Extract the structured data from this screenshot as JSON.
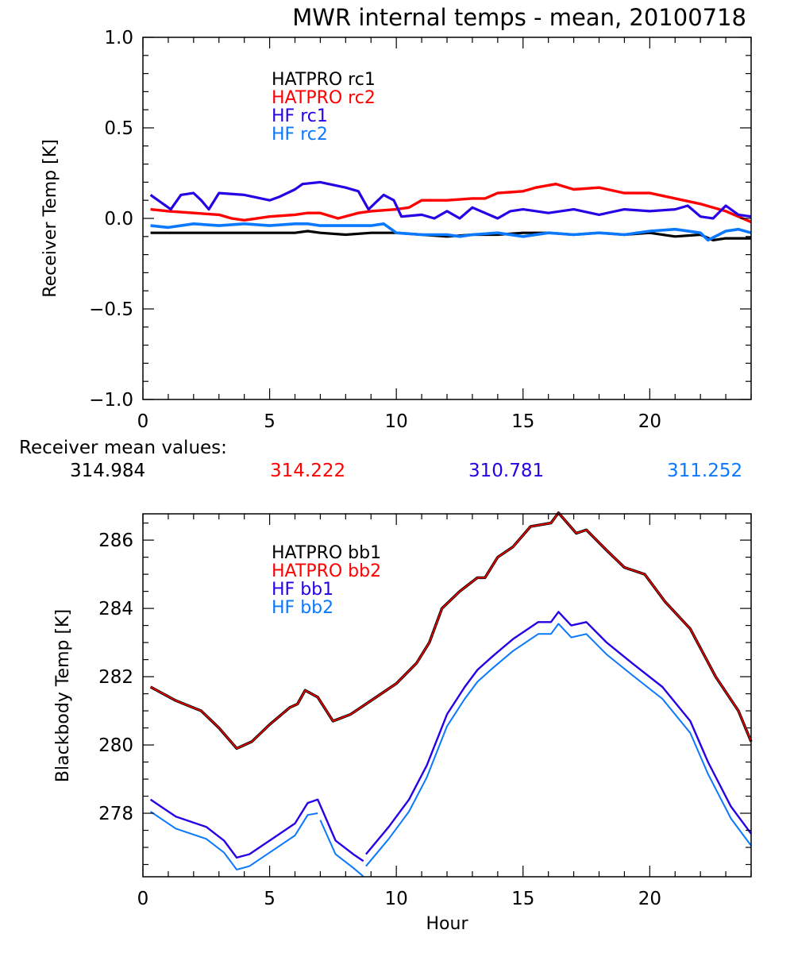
{
  "title": "MWR internal temps - mean, 20100718",
  "receiver_mean": {
    "label": "Receiver mean values:",
    "values": [
      {
        "text": "314.984",
        "color": "#000000"
      },
      {
        "text": "314.222",
        "color": "#ff0000"
      },
      {
        "text": "310.781",
        "color": "#2800e6"
      },
      {
        "text": "311.252",
        "color": "#0a78ff"
      }
    ]
  },
  "chart_data": [
    {
      "type": "line",
      "title": "MWR internal temps - mean, 20100718",
      "xlabel": "",
      "ylabel": "Receiver Temp [K]",
      "xlim": [
        0,
        24
      ],
      "ylim": [
        -1.0,
        1.0
      ],
      "xticks": [
        0,
        5,
        10,
        15,
        20
      ],
      "xtick_labels": [
        "0",
        "5",
        "10",
        "15",
        "20"
      ],
      "x_minor_step": 1,
      "yticks": [
        -1.0,
        -0.5,
        0.0,
        0.5,
        1.0
      ],
      "ytick_labels": [
        "−1.0",
        "−0.5",
        "0.0",
        "0.5",
        "1.0"
      ],
      "y_minor_step": 0.1,
      "grid": false,
      "legend_position": "top-center",
      "series": [
        {
          "name": "HATPRO rc1",
          "color": "#000000",
          "x": [
            0.3,
            1,
            2,
            3,
            4,
            5,
            6,
            6.5,
            7,
            8,
            9,
            9.5,
            10,
            11,
            12,
            13,
            14,
            15,
            16,
            17,
            18,
            19,
            20,
            21,
            22,
            22.5,
            23,
            24
          ],
          "y": [
            -0.08,
            -0.08,
            -0.08,
            -0.08,
            -0.08,
            -0.08,
            -0.08,
            -0.07,
            -0.08,
            -0.09,
            -0.08,
            -0.08,
            -0.08,
            -0.09,
            -0.1,
            -0.09,
            -0.09,
            -0.08,
            -0.08,
            -0.09,
            -0.08,
            -0.09,
            -0.08,
            -0.1,
            -0.09,
            -0.12,
            -0.11,
            -0.11
          ]
        },
        {
          "name": "HATPRO rc2",
          "color": "#ff0000",
          "x": [
            0.3,
            1,
            2,
            3,
            3.5,
            4,
            5,
            6,
            6.5,
            7,
            7.7,
            8.5,
            9,
            10,
            10.5,
            11,
            12,
            13,
            13.5,
            14,
            15,
            15.5,
            16.3,
            17,
            18,
            19,
            20,
            21,
            22,
            23,
            24
          ],
          "y": [
            0.05,
            0.04,
            0.03,
            0.02,
            0.0,
            -0.01,
            0.01,
            0.02,
            0.03,
            0.03,
            0.0,
            0.03,
            0.04,
            0.05,
            0.06,
            0.1,
            0.1,
            0.11,
            0.11,
            0.14,
            0.15,
            0.17,
            0.19,
            0.16,
            0.17,
            0.14,
            0.14,
            0.11,
            0.08,
            0.04,
            -0.02
          ]
        },
        {
          "name": "HF rc1",
          "color": "#2800e6",
          "x": [
            0.3,
            0.7,
            1.1,
            1.5,
            2.0,
            2.3,
            2.6,
            3.0,
            4.0,
            5.0,
            5.4,
            6.0,
            6.3,
            7.0,
            8.0,
            8.5,
            8.9,
            9.5,
            9.9,
            10.2,
            11.0,
            11.5,
            12.0,
            12.5,
            13.0,
            14.0,
            14.5,
            15.0,
            16.0,
            17.0,
            18.0,
            19.0,
            20.0,
            21.0,
            21.5,
            22.0,
            22.5,
            23.0,
            23.5,
            24.0
          ],
          "y": [
            0.13,
            0.09,
            0.05,
            0.13,
            0.14,
            0.1,
            0.05,
            0.14,
            0.13,
            0.1,
            0.12,
            0.16,
            0.19,
            0.2,
            0.17,
            0.15,
            0.05,
            0.13,
            0.1,
            0.01,
            0.02,
            0.0,
            0.04,
            0.0,
            0.06,
            0.0,
            0.04,
            0.05,
            0.03,
            0.05,
            0.02,
            0.05,
            0.04,
            0.05,
            0.07,
            0.01,
            0.0,
            0.07,
            0.02,
            0.01
          ]
        },
        {
          "name": "HF rc2",
          "color": "#0a78ff",
          "x": [
            0.3,
            1,
            2,
            3,
            4,
            5,
            6,
            6.5,
            7,
            8,
            9,
            9.5,
            10,
            11,
            12,
            12.5,
            13,
            14,
            15,
            16,
            17,
            18,
            19,
            20,
            21,
            22,
            22.3,
            23,
            23.5,
            24
          ],
          "y": [
            -0.04,
            -0.05,
            -0.03,
            -0.04,
            -0.03,
            -0.04,
            -0.03,
            -0.03,
            -0.04,
            -0.04,
            -0.04,
            -0.03,
            -0.08,
            -0.09,
            -0.09,
            -0.1,
            -0.09,
            -0.08,
            -0.1,
            -0.08,
            -0.09,
            -0.08,
            -0.09,
            -0.07,
            -0.06,
            -0.08,
            -0.12,
            -0.07,
            -0.06,
            -0.08
          ]
        }
      ]
    },
    {
      "type": "line",
      "title": "",
      "xlabel": "Hour",
      "ylabel": "Blackbody Temp [K]",
      "xlim": [
        0,
        24
      ],
      "ylim": [
        276.14,
        286.77
      ],
      "xticks": [
        0,
        5,
        10,
        15,
        20
      ],
      "xtick_labels": [
        "0",
        "5",
        "10",
        "15",
        "20"
      ],
      "x_minor_step": 1,
      "yticks": [
        278,
        280,
        282,
        284,
        286
      ],
      "ytick_labels": [
        "278",
        "280",
        "282",
        "284",
        "286"
      ],
      "y_minor_step": 0.5,
      "grid": false,
      "legend_position": "top-center",
      "series": [
        {
          "name": "HATPRO bb1",
          "color": "#000000",
          "x": [
            0.3,
            1.3,
            2.3,
            3.0,
            3.7,
            4.3,
            5.0,
            5.8,
            6.1,
            6.4,
            6.9,
            7.5,
            8.2,
            9.0,
            10.0,
            10.8,
            11.3,
            11.8,
            12.5,
            13.2,
            13.5,
            14.0,
            14.6,
            15.3,
            16.1,
            16.4,
            17.1,
            17.5,
            18.3,
            19.0,
            19.8,
            20.6,
            21.6,
            22.6,
            23.5,
            24.0
          ],
          "y": [
            281.7,
            281.3,
            281.0,
            280.5,
            279.9,
            280.1,
            280.6,
            281.1,
            281.2,
            281.6,
            281.4,
            280.7,
            280.9,
            281.3,
            281.8,
            282.4,
            283.0,
            284.0,
            284.5,
            284.9,
            284.9,
            285.5,
            285.8,
            286.4,
            286.5,
            286.8,
            286.2,
            286.3,
            285.7,
            285.2,
            285.0,
            284.2,
            283.4,
            282.0,
            281.0,
            280.1
          ]
        },
        {
          "name": "HATPRO bb2",
          "color": "#ff0000",
          "x": [
            0.3,
            1.3,
            2.3,
            3.0,
            3.7,
            4.3,
            5.0,
            5.8,
            6.1,
            6.4,
            6.9,
            7.5,
            8.2,
            9.0,
            10.0,
            10.8,
            11.3,
            11.8,
            12.5,
            13.2,
            13.5,
            14.0,
            14.6,
            15.3,
            16.1,
            16.4,
            17.1,
            17.5,
            18.3,
            19.0,
            19.8,
            20.6,
            21.6,
            22.6,
            23.5,
            24.0
          ],
          "y": [
            281.7,
            281.3,
            281.0,
            280.5,
            279.9,
            280.1,
            280.6,
            281.1,
            281.2,
            281.6,
            281.4,
            280.7,
            280.9,
            281.3,
            281.8,
            282.4,
            283.0,
            284.0,
            284.5,
            284.9,
            284.9,
            285.5,
            285.8,
            286.4,
            286.5,
            286.8,
            286.2,
            286.3,
            285.7,
            285.2,
            285.0,
            284.2,
            283.4,
            282.0,
            281.0,
            280.1
          ]
        },
        {
          "name": "HF bb1",
          "color": "#2800e6",
          "x": [
            0.3,
            1.3,
            2.5,
            3.2,
            3.7,
            4.2,
            5.2,
            6.0,
            6.5,
            6.9,
            7.6,
            8.3,
            8.7,
            null,
            8.8,
            9.7,
            10.5,
            11.2,
            12.0,
            12.7,
            13.2,
            13.8,
            14.6,
            15.6,
            16.1,
            16.4,
            16.9,
            17.5,
            18.3,
            19.3,
            20.5,
            21.6,
            22.3,
            23.2,
            24.0
          ],
          "y": [
            278.4,
            277.9,
            277.6,
            277.2,
            276.7,
            276.8,
            277.3,
            277.7,
            278.3,
            278.4,
            277.2,
            276.8,
            276.6,
            null,
            276.8,
            277.6,
            278.4,
            279.4,
            280.9,
            281.7,
            282.2,
            282.6,
            283.1,
            283.6,
            283.6,
            283.9,
            283.5,
            283.6,
            283.0,
            282.4,
            281.7,
            280.7,
            279.5,
            278.2,
            277.4
          ]
        },
        {
          "name": "HF bb2",
          "color": "#0a78ff",
          "x": [
            0.3,
            1.3,
            2.5,
            3.2,
            3.7,
            4.2,
            5.2,
            6.0,
            6.5,
            6.9,
            null,
            7.0,
            7.6,
            8.3,
            8.7,
            null,
            8.8,
            9.7,
            10.5,
            11.2,
            12.0,
            12.7,
            13.2,
            13.8,
            14.6,
            15.6,
            16.1,
            16.4,
            16.9,
            17.5,
            18.3,
            19.3,
            20.5,
            21.6,
            22.3,
            23.2,
            24.0
          ],
          "y": [
            278.05,
            277.55,
            277.25,
            276.85,
            276.35,
            276.45,
            276.95,
            277.35,
            277.95,
            278.0,
            null,
            277.8,
            276.8,
            276.4,
            276.15,
            null,
            276.45,
            277.25,
            278.05,
            279.05,
            280.55,
            281.35,
            281.85,
            282.25,
            282.75,
            283.25,
            283.25,
            283.55,
            283.15,
            283.25,
            282.65,
            282.05,
            281.35,
            280.35,
            279.15,
            277.85,
            277.05
          ]
        }
      ]
    }
  ]
}
